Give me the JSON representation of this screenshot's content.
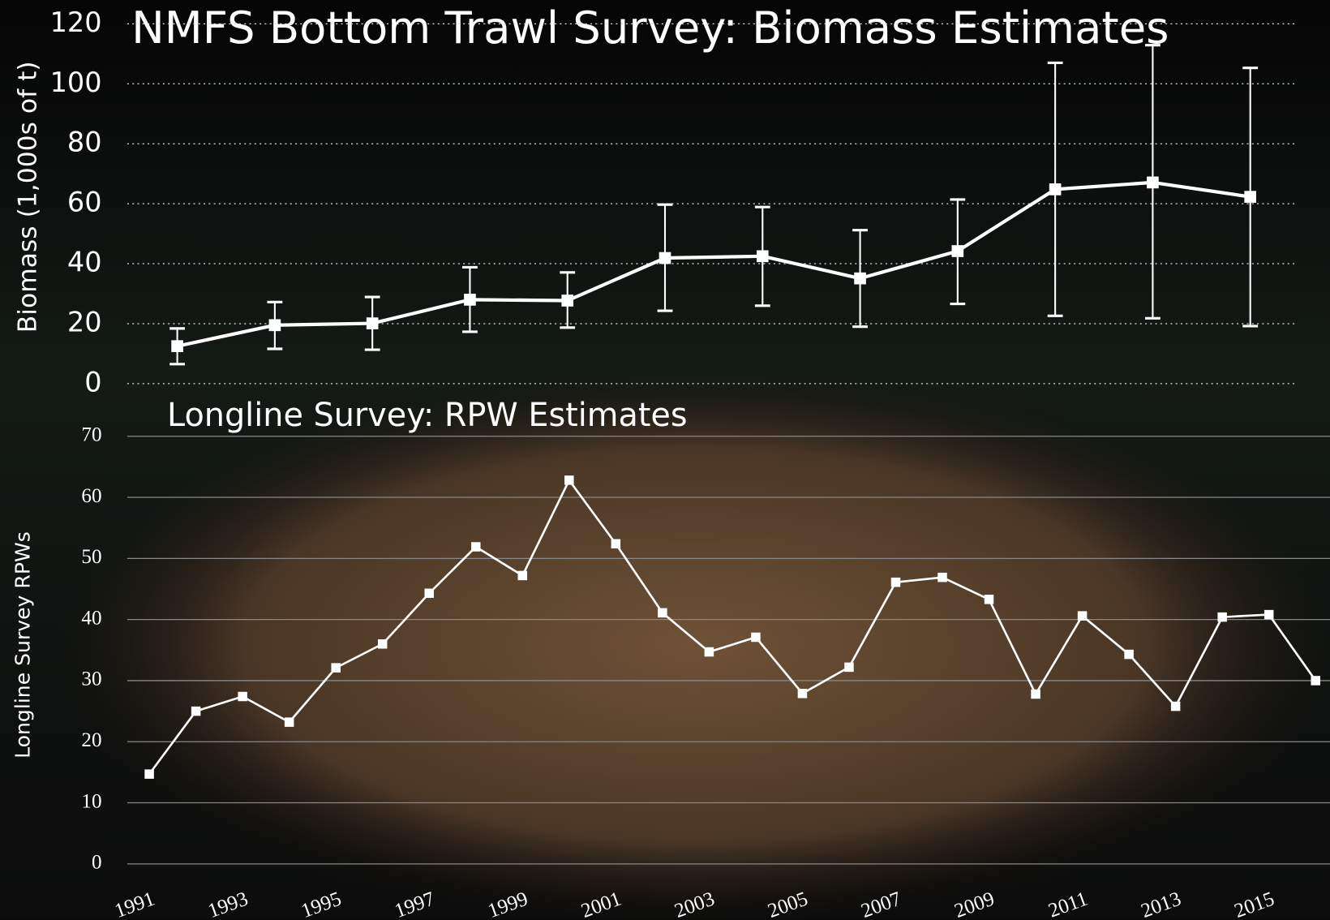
{
  "chart_data": [
    {
      "type": "line",
      "title": "NMFS Bottom Trawl Survey: Biomass Estimates",
      "y_label": "Biomass (1,000s of t)",
      "values": [
        12.5,
        19.5,
        20.1,
        28,
        27.7,
        41.9,
        42.5,
        35.1,
        44.2,
        64.8,
        67.1,
        62.3
      ],
      "lower": [
        6.5,
        11.6,
        11.3,
        17.3,
        18.7,
        24.3,
        26,
        19,
        26.6,
        22.6,
        21.8,
        19.2
      ],
      "upper": [
        18.4,
        27.2,
        28.9,
        38.8,
        37.1,
        59.7,
        58.9,
        51.2,
        61.4,
        107,
        112.9,
        105.3
      ],
      "color": "#ffffff",
      "ylim": [
        0,
        120
      ],
      "yticks": [
        0,
        20,
        40,
        60,
        80,
        100,
        120
      ],
      "grid": true
    },
    {
      "type": "line",
      "title": "Longline Survey: RPW Estimates",
      "y_label": "Longline Survey RPWs",
      "categories": [
        "1991",
        null,
        "1993",
        null,
        "1995",
        null,
        "1997",
        null,
        "1999",
        null,
        "2001",
        null,
        "2003",
        null,
        "2005",
        null,
        "2007",
        null,
        "2009",
        null,
        "2011",
        null,
        "2013",
        null,
        "2015",
        null
      ],
      "values": [
        14.7,
        25,
        27.4,
        23.2,
        32.1,
        36,
        44.3,
        51.9,
        47.2,
        62.8,
        52.4,
        41.1,
        34.7,
        37.1,
        27.9,
        32.2,
        46.1,
        46.9,
        43.3,
        27.8,
        40.6,
        34.3,
        25.8,
        40.4,
        40.8,
        30
      ],
      "color": "#ffffff",
      "ylim": [
        0,
        70
      ],
      "yticks": [
        0,
        10,
        20,
        30,
        40,
        50,
        60,
        70
      ],
      "grid": true
    }
  ]
}
